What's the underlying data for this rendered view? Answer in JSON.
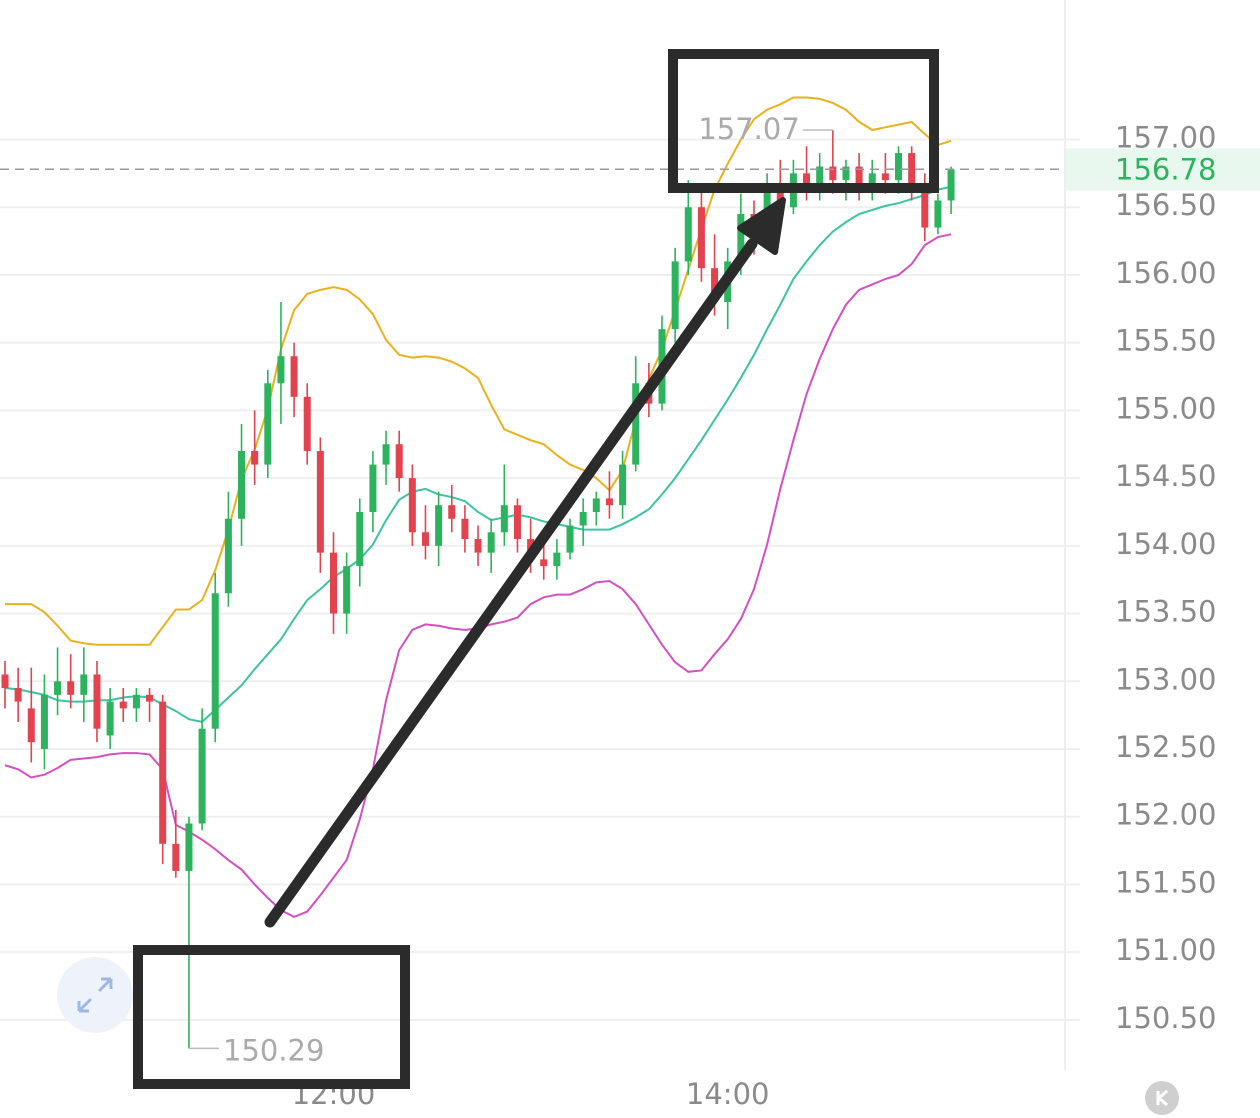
{
  "chart_data": {
    "type": "candlestick",
    "categories": [
      null,
      null,
      null,
      null,
      null,
      null,
      null,
      null,
      null,
      null,
      null,
      null,
      null,
      null,
      null,
      null,
      null,
      null,
      null,
      null,
      null,
      null,
      null,
      null,
      null,
      "12:00",
      null,
      null,
      null,
      null,
      null,
      null,
      null,
      null,
      null,
      null,
      null,
      null,
      null,
      null,
      null,
      null,
      null,
      null,
      null,
      null,
      null,
      null,
      null,
      null,
      null,
      null,
      null,
      null,
      null,
      "14:00",
      null,
      null,
      null,
      null,
      null,
      null,
      null,
      null,
      null,
      null,
      null,
      null,
      null,
      null,
      null,
      null,
      null
    ],
    "open": [
      153.05,
      152.95,
      152.8,
      152.5,
      152.9,
      153.0,
      152.9,
      153.05,
      152.6,
      152.85,
      152.8,
      152.9,
      152.85,
      151.8,
      151.6,
      151.95,
      152.65,
      153.65,
      154.2,
      154.7,
      154.6,
      155.2,
      155.4,
      155.1,
      154.7,
      153.95,
      153.5,
      153.85,
      154.25,
      154.6,
      154.75,
      154.5,
      154.1,
      154.0,
      154.3,
      154.2,
      154.05,
      153.95,
      154.1,
      154.3,
      154.05,
      153.9,
      153.85,
      153.95,
      154.15,
      154.25,
      154.35,
      154.3,
      154.6,
      155.2,
      155.05,
      155.6,
      156.1,
      156.5,
      156.05,
      155.8,
      156.1,
      156.45,
      156.3,
      156.65,
      156.5,
      156.75,
      156.65,
      156.8,
      156.7,
      156.8,
      156.65,
      156.75,
      156.7,
      156.9,
      156.65,
      156.35,
      156.55
    ],
    "high": [
      153.15,
      153.1,
      153.1,
      153.05,
      153.25,
      153.2,
      153.25,
      153.15,
      152.95,
      152.95,
      152.95,
      152.95,
      152.9,
      152.05,
      152.0,
      152.8,
      153.8,
      154.4,
      154.9,
      155.0,
      155.3,
      155.8,
      155.5,
      155.2,
      154.8,
      154.1,
      153.95,
      154.35,
      154.7,
      154.85,
      154.85,
      154.6,
      154.3,
      154.4,
      154.45,
      154.3,
      154.15,
      154.2,
      154.6,
      154.35,
      154.2,
      154.1,
      154.05,
      154.2,
      154.35,
      154.4,
      154.55,
      154.7,
      155.4,
      155.35,
      155.7,
      156.2,
      156.7,
      156.65,
      156.3,
      156.2,
      156.6,
      156.55,
      156.75,
      156.85,
      156.85,
      156.95,
      156.9,
      157.07,
      156.85,
      156.9,
      156.85,
      156.9,
      156.95,
      156.95,
      156.75,
      156.6,
      156.8
    ],
    "low": [
      152.8,
      152.7,
      152.4,
      152.35,
      152.75,
      152.8,
      152.7,
      152.55,
      152.5,
      152.7,
      152.7,
      152.7,
      151.65,
      151.55,
      150.29,
      151.9,
      152.55,
      153.55,
      154.0,
      154.45,
      154.5,
      154.9,
      154.95,
      154.6,
      153.8,
      153.35,
      153.35,
      153.7,
      154.1,
      154.45,
      154.4,
      154.0,
      153.9,
      153.85,
      154.1,
      153.95,
      153.85,
      153.8,
      154.0,
      153.95,
      153.8,
      153.75,
      153.75,
      153.9,
      154.0,
      154.15,
      154.2,
      154.2,
      154.55,
      154.95,
      155.0,
      155.5,
      156.0,
      155.95,
      155.7,
      155.6,
      156.0,
      156.15,
      156.2,
      156.4,
      156.45,
      156.55,
      156.55,
      156.6,
      156.55,
      156.55,
      156.55,
      156.6,
      156.6,
      156.55,
      156.25,
      156.3,
      156.45
    ],
    "close": [
      152.95,
      152.85,
      152.55,
      152.9,
      153.0,
      152.9,
      153.05,
      152.65,
      152.85,
      152.8,
      152.9,
      152.85,
      151.8,
      151.6,
      151.95,
      152.65,
      153.65,
      154.2,
      154.7,
      154.6,
      155.2,
      155.4,
      155.1,
      154.7,
      153.95,
      153.5,
      153.85,
      154.25,
      154.6,
      154.75,
      154.5,
      154.1,
      154.0,
      154.3,
      154.2,
      154.05,
      153.95,
      154.1,
      154.3,
      154.05,
      153.9,
      153.85,
      153.95,
      154.15,
      154.25,
      154.35,
      154.3,
      154.6,
      155.2,
      155.05,
      155.6,
      156.1,
      156.5,
      156.05,
      155.8,
      156.1,
      156.45,
      156.3,
      156.65,
      156.5,
      156.75,
      156.65,
      156.8,
      156.7,
      156.8,
      156.65,
      156.75,
      156.7,
      156.9,
      156.65,
      156.35,
      156.55,
      156.78
    ],
    "up_color": "#2db35d",
    "down_color": "#e2434f",
    "bands": [
      {
        "color": "#e9b11c",
        "values": [
          153.57,
          153.57,
          153.57,
          153.51,
          153.41,
          153.3,
          153.28,
          153.27,
          153.27,
          153.27,
          153.27,
          153.27,
          153.4,
          153.53,
          153.53,
          153.6,
          153.82,
          154.12,
          154.49,
          154.71,
          155.01,
          155.45,
          155.74,
          155.86,
          155.89,
          155.91,
          155.89,
          155.82,
          155.71,
          155.52,
          155.41,
          155.39,
          155.4,
          155.39,
          155.36,
          155.31,
          155.24,
          155.04,
          154.86,
          154.82,
          154.78,
          154.75,
          154.67,
          154.6,
          154.56,
          154.5,
          154.41,
          154.56,
          154.93,
          155.23,
          155.45,
          155.74,
          156.04,
          156.34,
          156.63,
          156.82,
          157.0,
          157.15,
          157.22,
          157.26,
          157.31,
          157.31,
          157.3,
          157.27,
          157.22,
          157.13,
          157.07,
          157.09,
          157.11,
          157.13,
          157.04,
          156.96,
          156.99
        ]
      },
      {
        "color": "#3cc3a0",
        "values": [
          152.95,
          152.94,
          152.92,
          152.9,
          152.86,
          152.85,
          152.85,
          152.86,
          152.86,
          152.88,
          152.89,
          152.88,
          152.83,
          152.78,
          152.72,
          152.7,
          152.79,
          152.88,
          152.97,
          153.09,
          153.2,
          153.31,
          153.46,
          153.6,
          153.68,
          153.77,
          153.83,
          153.9,
          154.01,
          154.19,
          154.34,
          154.4,
          154.42,
          154.38,
          154.36,
          154.33,
          154.25,
          154.19,
          154.21,
          154.23,
          154.21,
          154.18,
          154.16,
          154.14,
          154.12,
          154.12,
          154.12,
          154.16,
          154.21,
          154.27,
          154.38,
          154.5,
          154.64,
          154.78,
          154.93,
          155.08,
          155.24,
          155.41,
          155.6,
          155.78,
          155.97,
          156.1,
          156.22,
          156.32,
          156.39,
          156.45,
          156.48,
          156.51,
          156.53,
          156.56,
          156.59,
          156.63,
          156.65
        ]
      },
      {
        "color": "#d450c0",
        "values": [
          152.38,
          152.35,
          152.29,
          152.31,
          152.36,
          152.42,
          152.43,
          152.44,
          152.46,
          152.47,
          152.47,
          152.46,
          152.35,
          151.94,
          151.89,
          151.83,
          151.76,
          151.68,
          151.61,
          151.5,
          151.4,
          151.31,
          151.26,
          151.3,
          151.42,
          151.55,
          151.68,
          151.98,
          152.35,
          152.86,
          153.23,
          153.38,
          153.42,
          153.41,
          153.39,
          153.38,
          153.39,
          153.42,
          153.44,
          153.47,
          153.57,
          153.62,
          153.64,
          153.64,
          153.68,
          153.73,
          153.74,
          153.68,
          153.57,
          153.42,
          153.27,
          153.14,
          153.07,
          153.08,
          153.2,
          153.31,
          153.46,
          153.68,
          154.01,
          154.42,
          154.78,
          155.12,
          155.38,
          155.6,
          155.78,
          155.89,
          155.93,
          155.97,
          156.0,
          156.08,
          156.22,
          156.28,
          156.3
        ]
      }
    ],
    "ylim": [
      150.13,
      158.03
    ],
    "yticks": [
      {
        "value": 150.5,
        "label": "150.50"
      },
      {
        "value": 151,
        "label": "151.00"
      },
      {
        "value": 151.5,
        "label": "151.50"
      },
      {
        "value": 152,
        "label": "152.00"
      },
      {
        "value": 152.5,
        "label": "152.50"
      },
      {
        "value": 153,
        "label": "153.00"
      },
      {
        "value": 153.5,
        "label": "153.50"
      },
      {
        "value": 154,
        "label": "154.00"
      },
      {
        "value": 154.5,
        "label": "154.50"
      },
      {
        "value": 155,
        "label": "155.00"
      },
      {
        "value": 155.5,
        "label": "155.50"
      },
      {
        "value": 156,
        "label": "156.00"
      },
      {
        "value": 156.5,
        "label": "156.50"
      },
      {
        "value": 157,
        "label": "157.00"
      }
    ],
    "grid": true
  }
}
